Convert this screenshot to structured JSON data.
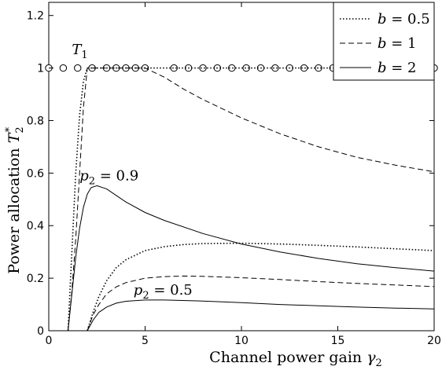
{
  "chart_data": {
    "type": "line",
    "xlabel_text": "Channel power gain ",
    "xlabel_var": "γ",
    "xlabel_sub": "2",
    "ylabel_text": "Power allocation ",
    "ylabel_var": "T",
    "ylabel_sub": "2",
    "ylabel_sup": "*",
    "xlim": [
      0,
      20
    ],
    "ylim": [
      0,
      1.25
    ],
    "xticks": [
      0,
      5,
      10,
      15,
      20
    ],
    "yticks": [
      0,
      0.2,
      0.4,
      0.6,
      0.8,
      1,
      1.2
    ],
    "ytick_labels": [
      "0",
      "0.2",
      "0.4",
      "0.6",
      "0.8",
      "1",
      "1.2"
    ],
    "grid": false,
    "legend_position": "top-right",
    "legend": [
      {
        "var": "b",
        "eq": " = 0.5",
        "style": "dotted"
      },
      {
        "var": "b",
        "eq": " = 1",
        "style": "dashed"
      },
      {
        "var": "b",
        "eq": " = 2",
        "style": "solid"
      }
    ],
    "annotations": [
      {
        "var": "T",
        "sub": "1",
        "eq": "",
        "x": 1.2,
        "y": 1.04
      },
      {
        "var": "p",
        "sub": "2",
        "eq": " = 0.9",
        "x": 1.6,
        "y": 0.56
      },
      {
        "var": "p",
        "sub": "2",
        "eq": " = 0.5",
        "x": 4.4,
        "y": 0.125
      }
    ],
    "t1_markers": {
      "name": "T1",
      "style": "circle",
      "x": [
        0,
        0.75,
        1.5,
        2.25,
        3.0,
        3.5,
        4.0,
        4.5,
        5.0,
        6.5,
        7.25,
        8.0,
        8.75,
        9.5,
        10.25,
        11.0,
        11.75,
        12.5,
        13.25,
        14.0,
        14.75,
        15.5,
        16.25,
        17.0,
        18.5,
        20.0
      ],
      "y": 1.0
    },
    "series": [
      {
        "style": "dotted",
        "group": "p2 = 0.9",
        "x": [
          1.0,
          1.2,
          1.4,
          1.6,
          1.8,
          2.0,
          2.2,
          2.5,
          3,
          4,
          5,
          6,
          8,
          10,
          12,
          14,
          16,
          18,
          20
        ],
        "y": [
          0,
          0.3,
          0.6,
          0.82,
          0.95,
          1.0,
          1.0,
          1.0,
          1.0,
          1.0,
          1.0,
          1.0,
          1.0,
          1.0,
          1.0,
          1.0,
          1.0,
          1.0,
          1.0
        ]
      },
      {
        "style": "dashed",
        "group": "p2 = 0.9",
        "x": [
          1.0,
          1.2,
          1.4,
          1.6,
          1.8,
          2.0,
          2.5,
          3,
          4,
          5,
          6,
          7,
          8,
          10,
          12,
          14,
          16,
          18,
          20
        ],
        "y": [
          0,
          0.15,
          0.35,
          0.6,
          0.85,
          1.0,
          1.0,
          1.0,
          1.0,
          1.0,
          0.965,
          0.92,
          0.88,
          0.81,
          0.75,
          0.7,
          0.66,
          0.63,
          0.605
        ]
      },
      {
        "style": "solid",
        "group": "p2 = 0.9",
        "x": [
          1.0,
          1.2,
          1.4,
          1.6,
          1.8,
          2.0,
          2.2,
          2.5,
          3,
          3.5,
          4,
          5,
          6,
          8,
          10,
          12,
          14,
          16,
          18,
          20
        ],
        "y": [
          0,
          0.14,
          0.28,
          0.39,
          0.47,
          0.52,
          0.545,
          0.552,
          0.54,
          0.515,
          0.49,
          0.45,
          0.42,
          0.37,
          0.33,
          0.3,
          0.275,
          0.255,
          0.24,
          0.227
        ]
      },
      {
        "style": "dotted",
        "group": "p2 = 0.5",
        "x": [
          2.0,
          2.3,
          2.6,
          3,
          3.5,
          4,
          5,
          6,
          7,
          8,
          10,
          12,
          14,
          16,
          18,
          20
        ],
        "y": [
          0,
          0.07,
          0.13,
          0.19,
          0.24,
          0.27,
          0.305,
          0.32,
          0.328,
          0.332,
          0.333,
          0.33,
          0.325,
          0.319,
          0.312,
          0.305
        ]
      },
      {
        "style": "dashed",
        "group": "p2 = 0.5",
        "x": [
          2.0,
          2.3,
          2.6,
          3,
          3.5,
          4,
          5,
          6,
          7,
          8,
          10,
          12,
          14,
          16,
          18,
          20
        ],
        "y": [
          0,
          0.06,
          0.1,
          0.14,
          0.167,
          0.183,
          0.2,
          0.206,
          0.208,
          0.207,
          0.202,
          0.195,
          0.187,
          0.18,
          0.174,
          0.168
        ]
      },
      {
        "style": "solid",
        "group": "p2 = 0.5",
        "x": [
          2.0,
          2.3,
          2.6,
          3,
          3.5,
          4,
          5,
          6,
          8,
          10,
          12,
          14,
          16,
          18,
          20
        ],
        "y": [
          0,
          0.04,
          0.07,
          0.09,
          0.105,
          0.112,
          0.117,
          0.117,
          0.113,
          0.107,
          0.1,
          0.095,
          0.09,
          0.086,
          0.083
        ]
      }
    ]
  }
}
